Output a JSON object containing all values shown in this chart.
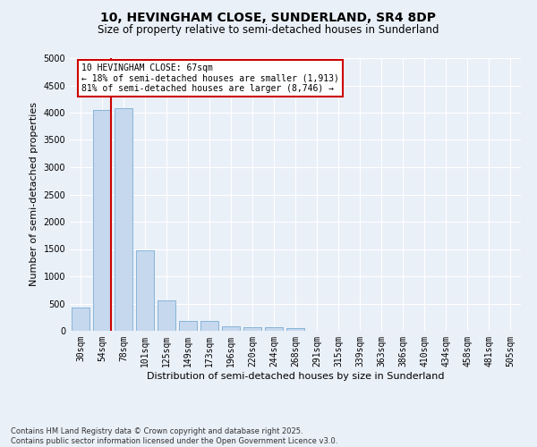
{
  "title1": "10, HEVINGHAM CLOSE, SUNDERLAND, SR4 8DP",
  "title2": "Size of property relative to semi-detached houses in Sunderland",
  "xlabel": "Distribution of semi-detached houses by size in Sunderland",
  "ylabel": "Number of semi-detached properties",
  "categories": [
    "30sqm",
    "54sqm",
    "78sqm",
    "101sqm",
    "125sqm",
    "149sqm",
    "173sqm",
    "196sqm",
    "220sqm",
    "244sqm",
    "268sqm",
    "291sqm",
    "315sqm",
    "339sqm",
    "363sqm",
    "386sqm",
    "410sqm",
    "434sqm",
    "458sqm",
    "481sqm",
    "505sqm"
  ],
  "values": [
    420,
    4050,
    4080,
    1480,
    555,
    175,
    175,
    90,
    65,
    60,
    55,
    0,
    0,
    0,
    0,
    0,
    0,
    0,
    0,
    0,
    0
  ],
  "bar_color": "#c5d8ee",
  "bar_edge_color": "#7aadd4",
  "vline_color": "#cc0000",
  "annotation_title": "10 HEVINGHAM CLOSE: 67sqm",
  "annotation_line1": "← 18% of semi-detached houses are smaller (1,913)",
  "annotation_line2": "81% of semi-detached houses are larger (8,746) →",
  "annotation_box_color": "#ffffff",
  "annotation_border_color": "#cc0000",
  "ylim": [
    0,
    5000
  ],
  "yticks": [
    0,
    500,
    1000,
    1500,
    2000,
    2500,
    3000,
    3500,
    4000,
    4500,
    5000
  ],
  "bg_color": "#eaf0f8",
  "grid_color": "#ffffff",
  "footer": "Contains HM Land Registry data © Crown copyright and database right 2025.\nContains public sector information licensed under the Open Government Licence v3.0.",
  "title_fontsize": 10,
  "subtitle_fontsize": 8.5,
  "axis_label_fontsize": 8,
  "tick_fontsize": 7,
  "footer_fontsize": 6
}
